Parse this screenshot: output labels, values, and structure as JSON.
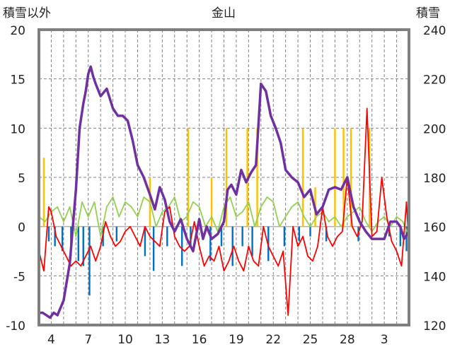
{
  "chart_data": {
    "type": "line",
    "title": "金山",
    "left_axis_label": "積雪以外",
    "right_axis_label": "積雪",
    "left_ylim": [
      -10,
      20
    ],
    "left_yticks": [
      -10,
      -5,
      0,
      5,
      10,
      15,
      20
    ],
    "right_ylim": [
      120,
      240
    ],
    "right_yticks": [
      120,
      140,
      160,
      180,
      200,
      220,
      240
    ],
    "x_days": 30,
    "x_tick_labels": [
      {
        "day": 1,
        "label": "4"
      },
      {
        "day": 4,
        "label": "7"
      },
      {
        "day": 7,
        "label": "10"
      },
      {
        "day": 10,
        "label": "13"
      },
      {
        "day": 13,
        "label": "16"
      },
      {
        "day": 16,
        "label": "19"
      },
      {
        "day": 19,
        "label": "22"
      },
      {
        "day": 22,
        "label": "25"
      },
      {
        "day": 25,
        "label": "28"
      },
      {
        "day": 28,
        "label": "3"
      }
    ],
    "grid": true,
    "colors": {
      "snow_depth": "#7030A0",
      "temperature": "#FF0000",
      "wind": "#92D050",
      "precip_positive": "#FFC000",
      "precip_negative": "#0070C0",
      "frame": "#7f7f7f",
      "grid": "#808080",
      "zero_line": "#b0b0b0"
    },
    "series": [
      {
        "key": "snow_depth",
        "axis": "right",
        "x": [
          0,
          0.3,
          0.6,
          0.9,
          1.2,
          1.5,
          2.0,
          2.5,
          3.0,
          3.3,
          3.6,
          3.8,
          4.0,
          4.2,
          4.4,
          4.6,
          5.0,
          5.5,
          6.0,
          6.4,
          6.8,
          7.2,
          7.6,
          8.0,
          8.5,
          9.0,
          9.4,
          9.8,
          10.2,
          10.6,
          11.0,
          11.5,
          12.0,
          12.5,
          13.0,
          13.3,
          13.6,
          14.0,
          14.5,
          15.0,
          15.3,
          15.6,
          16.0,
          16.4,
          16.8,
          17.2,
          17.6,
          18.0,
          18.4,
          18.8,
          19.2,
          19.6,
          20.0,
          20.5,
          21.0,
          21.5,
          22.0,
          22.5,
          23.0,
          23.5,
          24.0,
          24.5,
          25.0,
          25.5,
          26.0,
          26.5,
          27.0,
          27.5,
          28.0,
          28.5,
          29.0,
          29.3,
          29.6,
          30.0
        ],
        "values": [
          125,
          125,
          124,
          123,
          125,
          124,
          130,
          145,
          175,
          200,
          210,
          215,
          222,
          225,
          221,
          218,
          213,
          216,
          208,
          205,
          205,
          203,
          195,
          185,
          180,
          173,
          167,
          176,
          171,
          162,
          158,
          163,
          155,
          150,
          163,
          155,
          160,
          155,
          157,
          162,
          175,
          177,
          173,
          183,
          178,
          182,
          185,
          218,
          215,
          205,
          200,
          194,
          183,
          180,
          178,
          172,
          175,
          165,
          168,
          175,
          176,
          175,
          180,
          168,
          162,
          158,
          155,
          155,
          155,
          162,
          162,
          160,
          155,
          158
        ]
      },
      {
        "key": "temperature",
        "axis": "left",
        "x": [
          0,
          0.4,
          0.8,
          1.0,
          1.4,
          1.8,
          2.2,
          2.6,
          3.0,
          3.4,
          3.8,
          4.2,
          4.6,
          5.0,
          5.4,
          5.8,
          6.2,
          6.6,
          7.0,
          7.4,
          7.8,
          8.2,
          8.6,
          9.0,
          9.4,
          9.8,
          10.2,
          10.6,
          11.0,
          11.4,
          11.8,
          12.2,
          12.6,
          13.0,
          13.4,
          13.8,
          14.2,
          14.6,
          15.0,
          15.4,
          15.8,
          16.2,
          16.6,
          17.0,
          17.4,
          17.8,
          18.2,
          18.6,
          19.0,
          19.4,
          19.8,
          20.2,
          20.6,
          21.0,
          21.4,
          21.8,
          22.2,
          22.6,
          23.0,
          23.4,
          23.8,
          24.2,
          24.6,
          25.0,
          25.4,
          25.8,
          26.2,
          26.6,
          27.0,
          27.4,
          27.8,
          28.2,
          28.6,
          29.0,
          29.4,
          29.8,
          30.0
        ],
        "values": [
          -2.5,
          -4.5,
          2,
          1.5,
          -1,
          -2,
          -3,
          -4,
          -3.5,
          -4,
          -3,
          -2,
          -3.5,
          -2,
          0.5,
          -1,
          -2,
          -1.5,
          -0.5,
          0,
          -1,
          -2,
          0,
          -1,
          -1.5,
          -2,
          1.5,
          2,
          -1,
          -2,
          -2.5,
          -2,
          0.5,
          -2,
          -4,
          -3,
          -3.5,
          -2,
          -4.5,
          -3.5,
          -2,
          -3.5,
          -4.5,
          -2,
          -3.5,
          -4,
          0,
          -2,
          -3,
          -4,
          -2.5,
          -9,
          0,
          -2,
          -1,
          -3,
          -3.5,
          -2,
          2,
          -1,
          -2,
          -1,
          -0.5,
          5,
          0,
          -1,
          0.5,
          12,
          -1,
          -0.5,
          5,
          1,
          -1.5,
          -2.5,
          -4,
          2.5,
          -2
        ]
      },
      {
        "key": "wind",
        "axis": "left",
        "x": [
          0,
          0.5,
          1.0,
          1.5,
          2.0,
          2.5,
          3.0,
          3.5,
          4.0,
          4.5,
          5.0,
          5.5,
          6.0,
          6.5,
          7.0,
          7.5,
          8.0,
          8.5,
          9.0,
          9.5,
          10.0,
          10.5,
          11.0,
          11.5,
          12.0,
          12.5,
          13.0,
          13.5,
          14.0,
          14.5,
          15.0,
          15.5,
          16.0,
          16.5,
          17.0,
          17.5,
          18.0,
          18.5,
          19.0,
          19.5,
          20.0,
          20.5,
          21.0,
          21.5,
          22.0,
          22.5,
          23.0,
          23.5,
          24.0,
          24.5,
          25.0,
          25.5,
          26.0,
          26.5,
          27.0,
          27.5,
          28.0,
          28.5,
          29.0,
          29.5,
          30.0
        ],
        "values": [
          1,
          0.5,
          1.5,
          2,
          0.5,
          2,
          -1,
          2.5,
          1,
          2.5,
          -1,
          2,
          3,
          1,
          2.5,
          2,
          1,
          3,
          2.5,
          0,
          1.5,
          2,
          3,
          0.5,
          1,
          2.5,
          2,
          0,
          1,
          -0.5,
          2,
          3,
          1,
          1.5,
          2.5,
          0,
          2,
          3,
          2.5,
          0,
          1,
          2,
          2.5,
          1,
          0,
          1,
          1.5,
          0.5,
          1,
          0,
          1,
          1.5,
          2,
          0.5,
          -0.5,
          0.5,
          1,
          0,
          1,
          0.5,
          -1
        ]
      }
    ],
    "precip_bars": {
      "axis": "left",
      "positive": [
        {
          "x": 0.4,
          "value": 7
        },
        {
          "x": 9.0,
          "value": 5
        },
        {
          "x": 12.1,
          "value": 10
        },
        {
          "x": 14.0,
          "value": 5
        },
        {
          "x": 15.2,
          "value": 10
        },
        {
          "x": 16.9,
          "value": 10
        },
        {
          "x": 17.7,
          "value": 10
        },
        {
          "x": 21.4,
          "value": 10
        },
        {
          "x": 22.4,
          "value": 4
        },
        {
          "x": 24.0,
          "value": 10
        },
        {
          "x": 24.7,
          "value": 10
        },
        {
          "x": 25.3,
          "value": 10
        },
        {
          "x": 26.8,
          "value": 10
        }
      ],
      "negative": [
        {
          "x": 0.8,
          "value": -1.5
        },
        {
          "x": 1.3,
          "value": -2
        },
        {
          "x": 1.9,
          "value": -2.5
        },
        {
          "x": 2.6,
          "value": -3
        },
        {
          "x": 3.2,
          "value": -3.5
        },
        {
          "x": 3.6,
          "value": -4
        },
        {
          "x": 4.1,
          "value": -7
        },
        {
          "x": 5.2,
          "value": -2
        },
        {
          "x": 6.3,
          "value": -1.5
        },
        {
          "x": 8.6,
          "value": -3
        },
        {
          "x": 9.3,
          "value": -4.5
        },
        {
          "x": 10.4,
          "value": -2
        },
        {
          "x": 11.6,
          "value": -4
        },
        {
          "x": 12.3,
          "value": -2
        },
        {
          "x": 13.9,
          "value": -3.5
        },
        {
          "x": 14.8,
          "value": -2
        },
        {
          "x": 15.7,
          "value": -4
        },
        {
          "x": 16.5,
          "value": -2
        },
        {
          "x": 17.3,
          "value": -3
        },
        {
          "x": 18.6,
          "value": -3.5
        },
        {
          "x": 19.9,
          "value": -2
        },
        {
          "x": 21.1,
          "value": -1.5
        },
        {
          "x": 22.0,
          "value": -1
        },
        {
          "x": 23.3,
          "value": -1.5
        },
        {
          "x": 25.9,
          "value": -1.5
        },
        {
          "x": 28.4,
          "value": -1
        },
        {
          "x": 29.3,
          "value": -2
        },
        {
          "x": 29.8,
          "value": -2.5
        }
      ]
    }
  }
}
